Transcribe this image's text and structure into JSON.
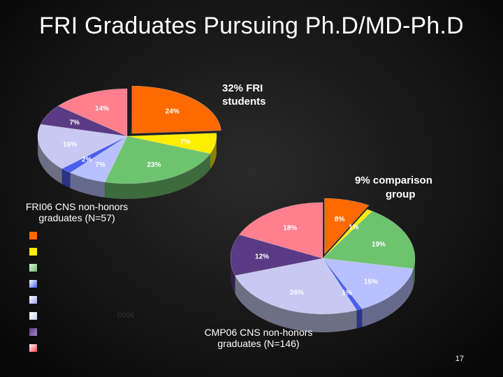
{
  "title": "FRI Graduates Pursuing Ph.D/MD-Ph.D",
  "annotations": {
    "fri_pct": "32% FRI",
    "fri_pct2": "students",
    "cmp_pct": "9% comparison",
    "cmp_pct2": "group"
  },
  "pie1_label": "FRI06 CNS non-honors",
  "pie1_label2": "graduates (N=57)",
  "pie2_label": "CMP06 CNS non-honors",
  "pie2_label2": "graduates (N=146)",
  "legend_fragment": "0006",
  "page_number": "17",
  "colors": {
    "orange": "#ff6a00",
    "yellow": "#ffee00",
    "green": "#6ec36e",
    "blue": "#4a5ef0",
    "lightblue": "#9aa6ff",
    "lavender": "#cdd0f5",
    "pink": "#ff7f8e",
    "purple": "#5b3a85"
  },
  "chart_data": [
    {
      "type": "pie",
      "title": "FRI06 CNS non-honors graduates (N=57)",
      "labels": [
        "24%",
        "7%",
        "23%",
        "7%",
        "2%",
        "16%",
        "7%",
        "14%"
      ],
      "values": [
        24,
        7,
        23,
        7,
        2,
        16,
        7,
        14
      ],
      "colors": [
        "#ff6a00",
        "#ffee00",
        "#6ec36e",
        "#b8c0ff",
        "#4a5ef0",
        "#c7c9f2",
        "#5b3a85",
        "#ff7f8e"
      ]
    },
    {
      "type": "pie",
      "title": "CMP06 CNS non-honors graduates (N=146)",
      "labels": [
        "8%",
        "1%",
        "19%",
        "15%",
        "1%",
        "26%",
        "12%",
        "18%"
      ],
      "values": [
        8,
        1,
        19,
        15,
        1,
        26,
        12,
        18
      ],
      "colors": [
        "#ff6a00",
        "#ffee00",
        "#6ec36e",
        "#b8c0ff",
        "#4a5ef0",
        "#c7c9f2",
        "#5b3a85",
        "#ff7f8e"
      ]
    }
  ]
}
